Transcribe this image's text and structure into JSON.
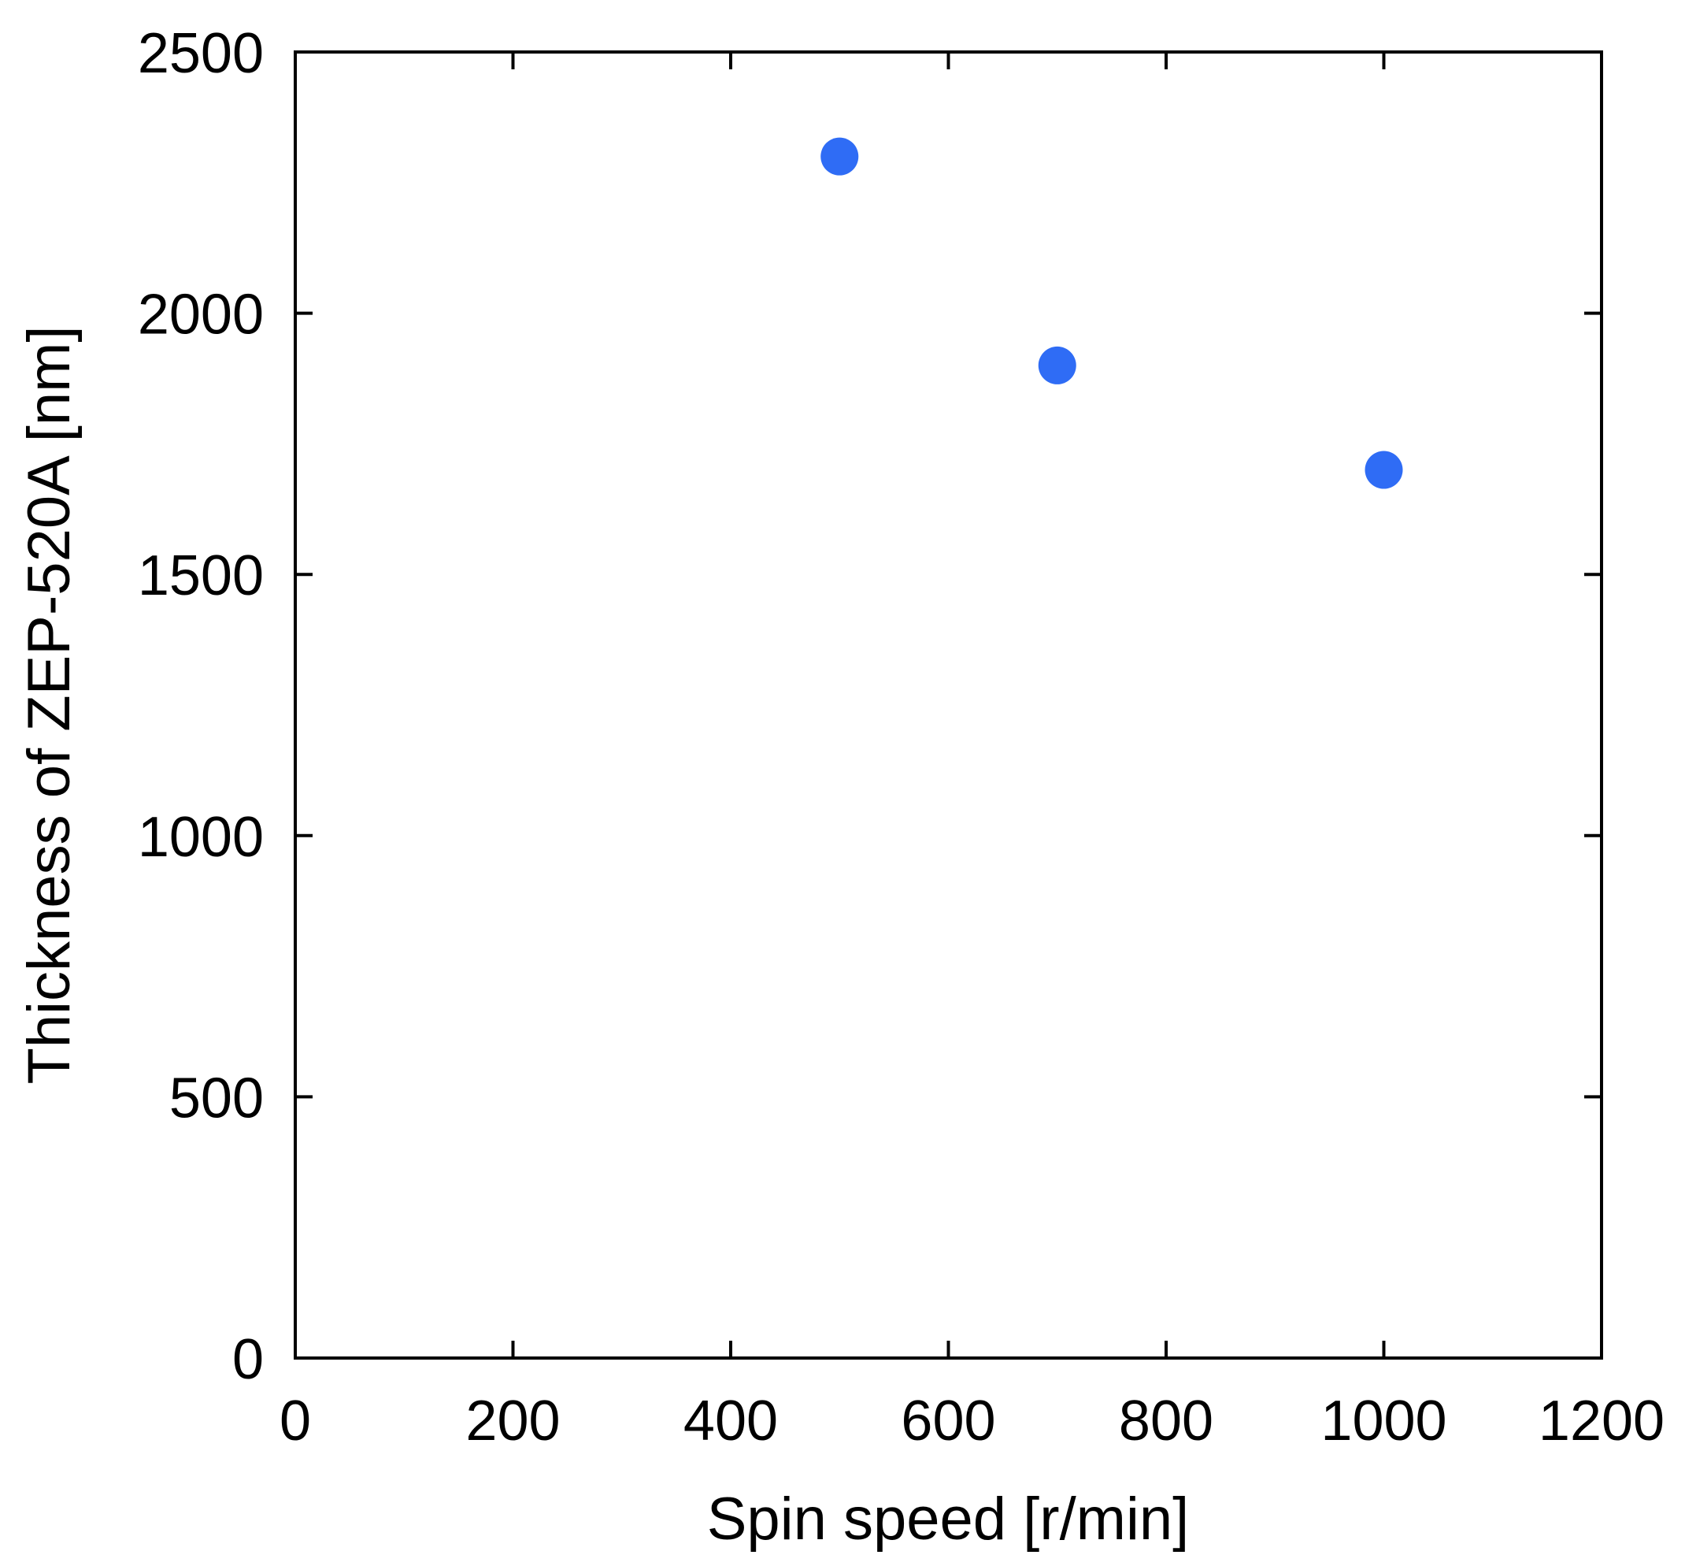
{
  "chart_data": {
    "type": "scatter",
    "title": "",
    "xlabel": "Spin speed [r/min]",
    "ylabel": "Thickness of ZEP-520A [nm]",
    "xlim": [
      0,
      1200
    ],
    "ylim": [
      0,
      2500
    ],
    "xticks": [
      0,
      200,
      400,
      600,
      800,
      1000,
      1200
    ],
    "yticks": [
      0,
      500,
      1000,
      1500,
      2000,
      2500
    ],
    "xtick_labels": [
      "0",
      "200",
      "400",
      "600",
      "800",
      "1000",
      "1200"
    ],
    "ytick_labels": [
      "0",
      "500",
      "1000",
      "1500",
      "2000",
      "2500"
    ],
    "grid": false,
    "legend": "none",
    "series": [
      {
        "color": "#2f6cf5",
        "marker": "filled-circle",
        "points": [
          {
            "x": 500,
            "y": 2300
          },
          {
            "x": 700,
            "y": 1900
          },
          {
            "x": 1000,
            "y": 1700
          }
        ]
      }
    ]
  }
}
